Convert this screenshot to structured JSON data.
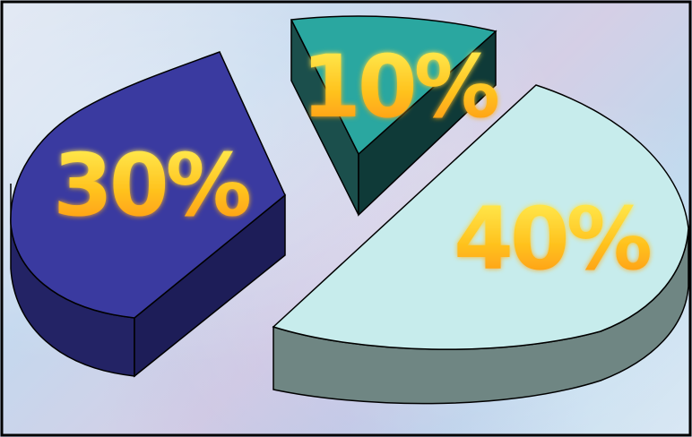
{
  "chart_data": {
    "type": "pie",
    "style": "3d-exploded",
    "legend": "none",
    "slices": [
      {
        "label": "30%",
        "value": 30,
        "color": "#3a3aa0"
      },
      {
        "label": "10%",
        "value": 10,
        "color": "#2aa7a0"
      },
      {
        "label": "40%",
        "value": 40,
        "color": "#c7ecec"
      }
    ]
  },
  "colors": {
    "label_fill_top": "#ffef3a",
    "label_fill_bottom": "#ff9b1a",
    "outline": "#000000"
  }
}
